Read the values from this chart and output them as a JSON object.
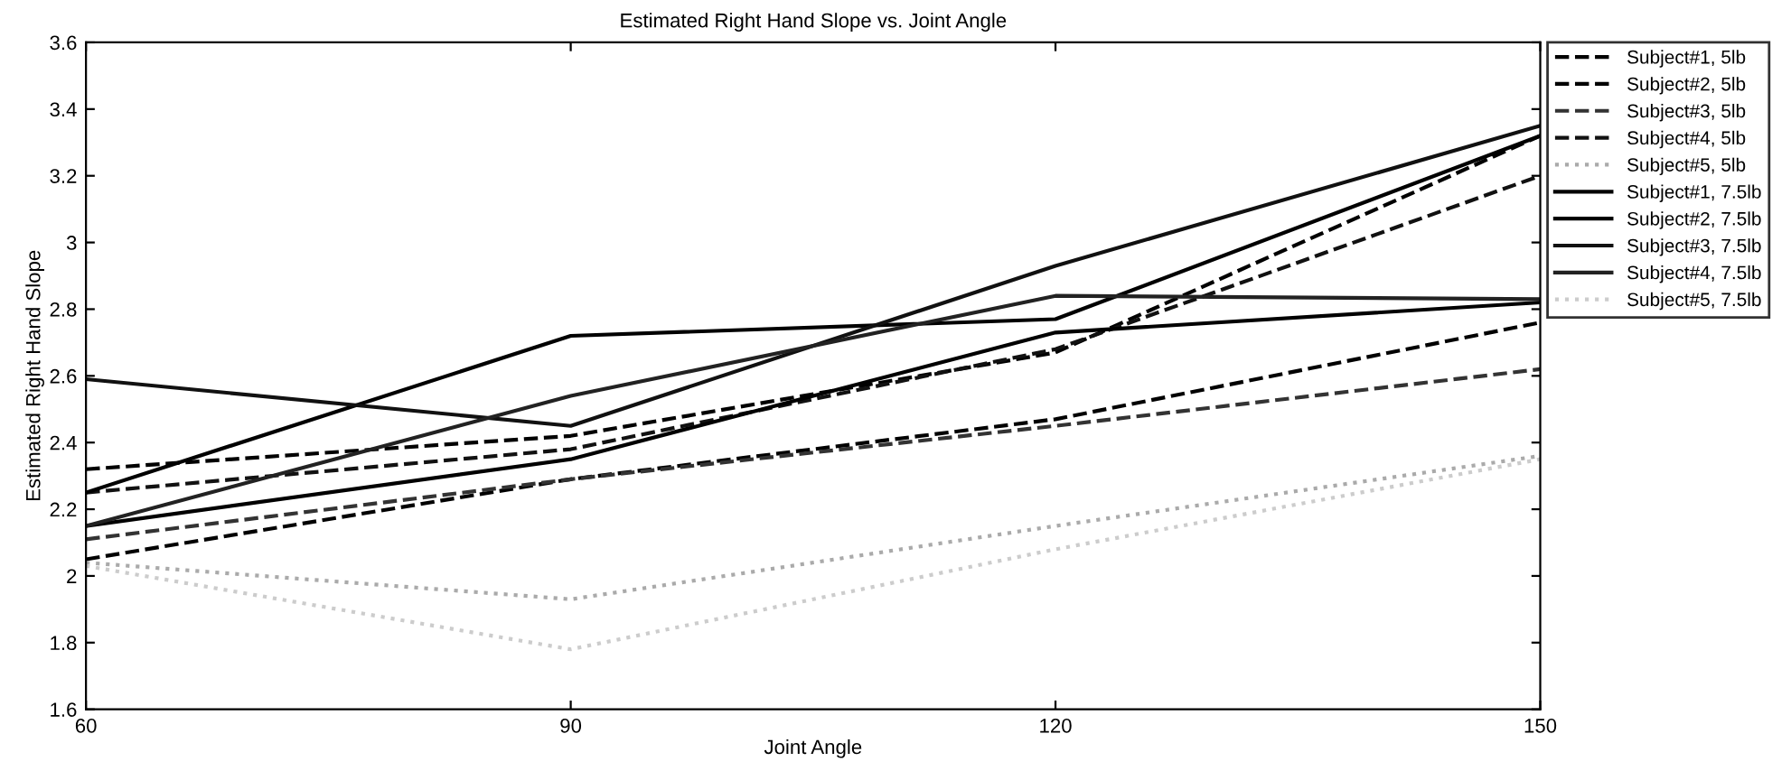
{
  "chart_data": {
    "type": "line",
    "title": "Estimated Right Hand Slope vs. Joint Angle",
    "xlabel": "Joint Angle",
    "ylabel": "Estimated Right Hand Slope",
    "x": [
      60,
      90,
      120,
      150
    ],
    "series": [
      {
        "name": "Subject#1, 5lb",
        "color": "#000000",
        "line_style": "dashed",
        "values": [
          2.32,
          2.42,
          2.67,
          3.32
        ]
      },
      {
        "name": "Subject#2, 5lb",
        "color": "#000000",
        "line_style": "dashed",
        "values": [
          2.05,
          2.29,
          2.47,
          2.76
        ]
      },
      {
        "name": "Subject#3, 5lb",
        "color": "#333333",
        "line_style": "dashed",
        "values": [
          2.11,
          2.29,
          2.45,
          2.62
        ]
      },
      {
        "name": "Subject#4, 5lb",
        "color": "#111111",
        "line_style": "dashed",
        "values": [
          2.25,
          2.38,
          2.68,
          3.2
        ]
      },
      {
        "name": "Subject#5, 5lb",
        "color": "#aaaaaa",
        "line_style": "dotted",
        "values": [
          2.04,
          1.93,
          2.15,
          2.36
        ]
      },
      {
        "name": "Subject#1, 7.5lb",
        "color": "#000000",
        "line_style": "solid",
        "values": [
          2.25,
          2.72,
          2.77,
          3.32
        ]
      },
      {
        "name": "Subject#2, 7.5lb",
        "color": "#000000",
        "line_style": "solid",
        "values": [
          2.15,
          2.35,
          2.73,
          2.82
        ]
      },
      {
        "name": "Subject#3, 7.5lb",
        "color": "#111111",
        "line_style": "solid",
        "values": [
          2.59,
          2.45,
          2.93,
          3.35
        ]
      },
      {
        "name": "Subject#4, 7.5lb",
        "color": "#222222",
        "line_style": "solid",
        "values": [
          2.15,
          2.54,
          2.84,
          2.83
        ]
      },
      {
        "name": "Subject#5, 7.5lb",
        "color": "#cccccc",
        "line_style": "dotted",
        "values": [
          2.03,
          1.78,
          2.08,
          2.35
        ]
      }
    ],
    "xlim": [
      60,
      150
    ],
    "xticks": [
      60,
      90,
      120,
      150
    ],
    "ylim": [
      1.6,
      3.6
    ],
    "yticks": [
      1.6,
      1.8,
      2,
      2.2,
      2.4,
      2.6,
      2.8,
      3,
      3.2,
      3.4,
      3.6
    ],
    "grid": false,
    "legend": "top right",
    "marker": "none"
  }
}
